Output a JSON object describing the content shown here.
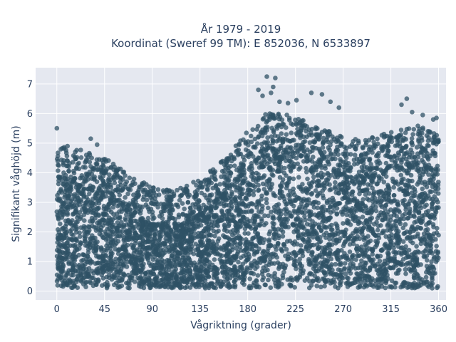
{
  "chart_data": {
    "type": "scatter",
    "title_line1": "År 1979 - 2019",
    "title_line2": "Koordinat (Sweref 99 TM): E 852036, N 6533897",
    "xlabel": "Vågriktning (grader)",
    "ylabel": "Signifikant våghöjd (m)",
    "xlim": [
      -20,
      367
    ],
    "ylim": [
      -0.3,
      7.55
    ],
    "xticks": [
      0,
      45,
      90,
      135,
      180,
      225,
      270,
      315,
      360
    ],
    "yticks": [
      0,
      1,
      2,
      3,
      4,
      5,
      6,
      7
    ],
    "grid": true,
    "marker_color": "#2f5166",
    "plot_bg": "#e5e8f0",
    "envelope": {
      "x": [
        0,
        20,
        45,
        70,
        90,
        110,
        135,
        160,
        180,
        200,
        225,
        250,
        270,
        290,
        315,
        340,
        360
      ],
      "upper": [
        4.2,
        4.1,
        3.8,
        3.3,
        2.8,
        2.7,
        3.1,
        3.9,
        4.7,
        5.4,
        5.2,
        4.8,
        4.5,
        4.4,
        4.7,
        4.9,
        4.6
      ]
    },
    "outliers": [
      {
        "x": 0,
        "y": 5.5
      },
      {
        "x": 10,
        "y": 4.9
      },
      {
        "x": 32,
        "y": 5.15
      },
      {
        "x": 38,
        "y": 4.95
      },
      {
        "x": 190,
        "y": 6.8
      },
      {
        "x": 194,
        "y": 6.6
      },
      {
        "x": 198,
        "y": 7.25
      },
      {
        "x": 202,
        "y": 6.7
      },
      {
        "x": 204,
        "y": 6.9
      },
      {
        "x": 206,
        "y": 7.2
      },
      {
        "x": 210,
        "y": 6.4
      },
      {
        "x": 218,
        "y": 6.35
      },
      {
        "x": 226,
        "y": 6.45
      },
      {
        "x": 240,
        "y": 6.7
      },
      {
        "x": 250,
        "y": 6.65
      },
      {
        "x": 258,
        "y": 6.4
      },
      {
        "x": 266,
        "y": 6.2
      },
      {
        "x": 325,
        "y": 6.3
      },
      {
        "x": 330,
        "y": 6.5
      },
      {
        "x": 335,
        "y": 6.05
      },
      {
        "x": 345,
        "y": 5.95
      },
      {
        "x": 355,
        "y": 5.8
      },
      {
        "x": 358,
        "y": 5.85
      }
    ]
  }
}
